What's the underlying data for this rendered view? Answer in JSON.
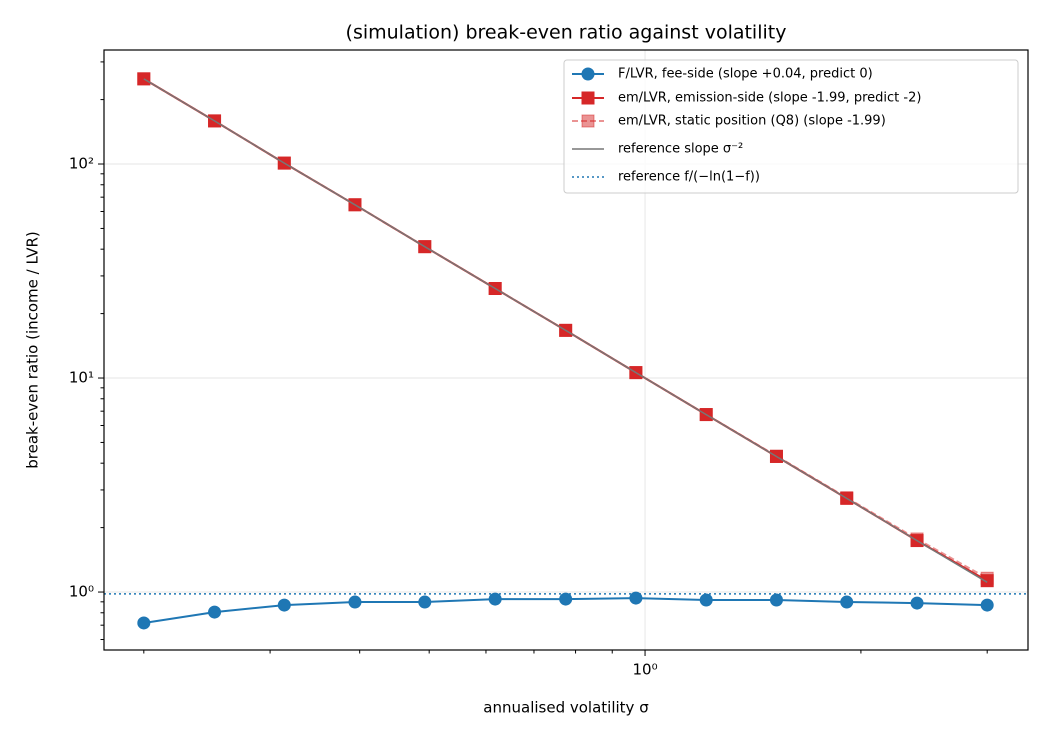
{
  "chart_data": {
    "type": "line",
    "title": "(simulation)  break-even ratio against volatility",
    "x_label": "annualised volatility σ",
    "y_label": "break-even ratio (income / LVR)",
    "log_x": true,
    "log_y": true,
    "grid": true,
    "xlim": [
      0.176,
      3.42
    ],
    "ylim": [
      0.536,
      341
    ],
    "xticks": [
      {
        "value": 1,
        "label": "10⁰"
      }
    ],
    "xminor_ticks": [
      0.2,
      0.3,
      0.4,
      0.5,
      0.6,
      0.7,
      0.8,
      0.9,
      2,
      3
    ],
    "yticks": [
      {
        "value": 1,
        "label": "10⁰"
      },
      {
        "value": 10,
        "label": "10¹"
      },
      {
        "value": 100,
        "label": "10²"
      }
    ],
    "yminor_ticks": [
      0.6,
      0.7,
      0.8,
      0.9,
      2,
      3,
      4,
      5,
      6,
      7,
      8,
      9,
      20,
      30,
      40,
      50,
      60,
      70,
      80,
      90,
      200,
      300
    ],
    "legend_position": "upper right",
    "x": [
      0.2,
      0.251,
      0.314,
      0.394,
      0.493,
      0.618,
      0.775,
      0.971,
      1.217,
      1.525,
      1.911,
      2.395,
      3.0
    ],
    "series": [
      {
        "name": "F/LVR, fee-side  (slope +0.04, predict 0)",
        "color": "#1f77b4",
        "marker": "circle",
        "linestyle": "solid",
        "alpha": 1,
        "values": [
          0.717,
          0.806,
          0.869,
          0.898,
          0.898,
          0.927,
          0.927,
          0.937,
          0.918,
          0.918,
          0.898,
          0.888,
          0.869
        ]
      },
      {
        "name": "em/LVR, emission-side  (slope -1.99, predict -2)",
        "color": "#d62728",
        "marker": "square",
        "linestyle": "solid",
        "alpha": 1,
        "values": [
          250,
          159,
          101,
          64.5,
          41.1,
          26.2,
          16.7,
          10.6,
          6.75,
          4.3,
          2.74,
          1.74,
          1.13
        ]
      },
      {
        "name": "em/LVR, static position (Q8)  (slope -1.99)",
        "color": "#d62728",
        "marker": "square",
        "linestyle": "dashed",
        "alpha": 0.5,
        "values": [
          250,
          159,
          101,
          64.5,
          41.1,
          26.2,
          16.7,
          10.6,
          6.75,
          4.32,
          2.76,
          1.77,
          1.16
        ]
      },
      {
        "name": "reference slope σ⁻²",
        "color": "#777777",
        "marker": "none",
        "linestyle": "solid",
        "alpha": 1,
        "values": [
          250,
          159,
          101,
          64.5,
          41.1,
          26.2,
          16.7,
          10.6,
          6.75,
          4.3,
          2.74,
          1.74,
          1.11
        ]
      },
      {
        "name": "reference f/(−ln(1−f))",
        "color": "#1f77b4",
        "marker": "none",
        "linestyle": "dotted",
        "alpha": 1,
        "hline": 0.98
      }
    ]
  }
}
